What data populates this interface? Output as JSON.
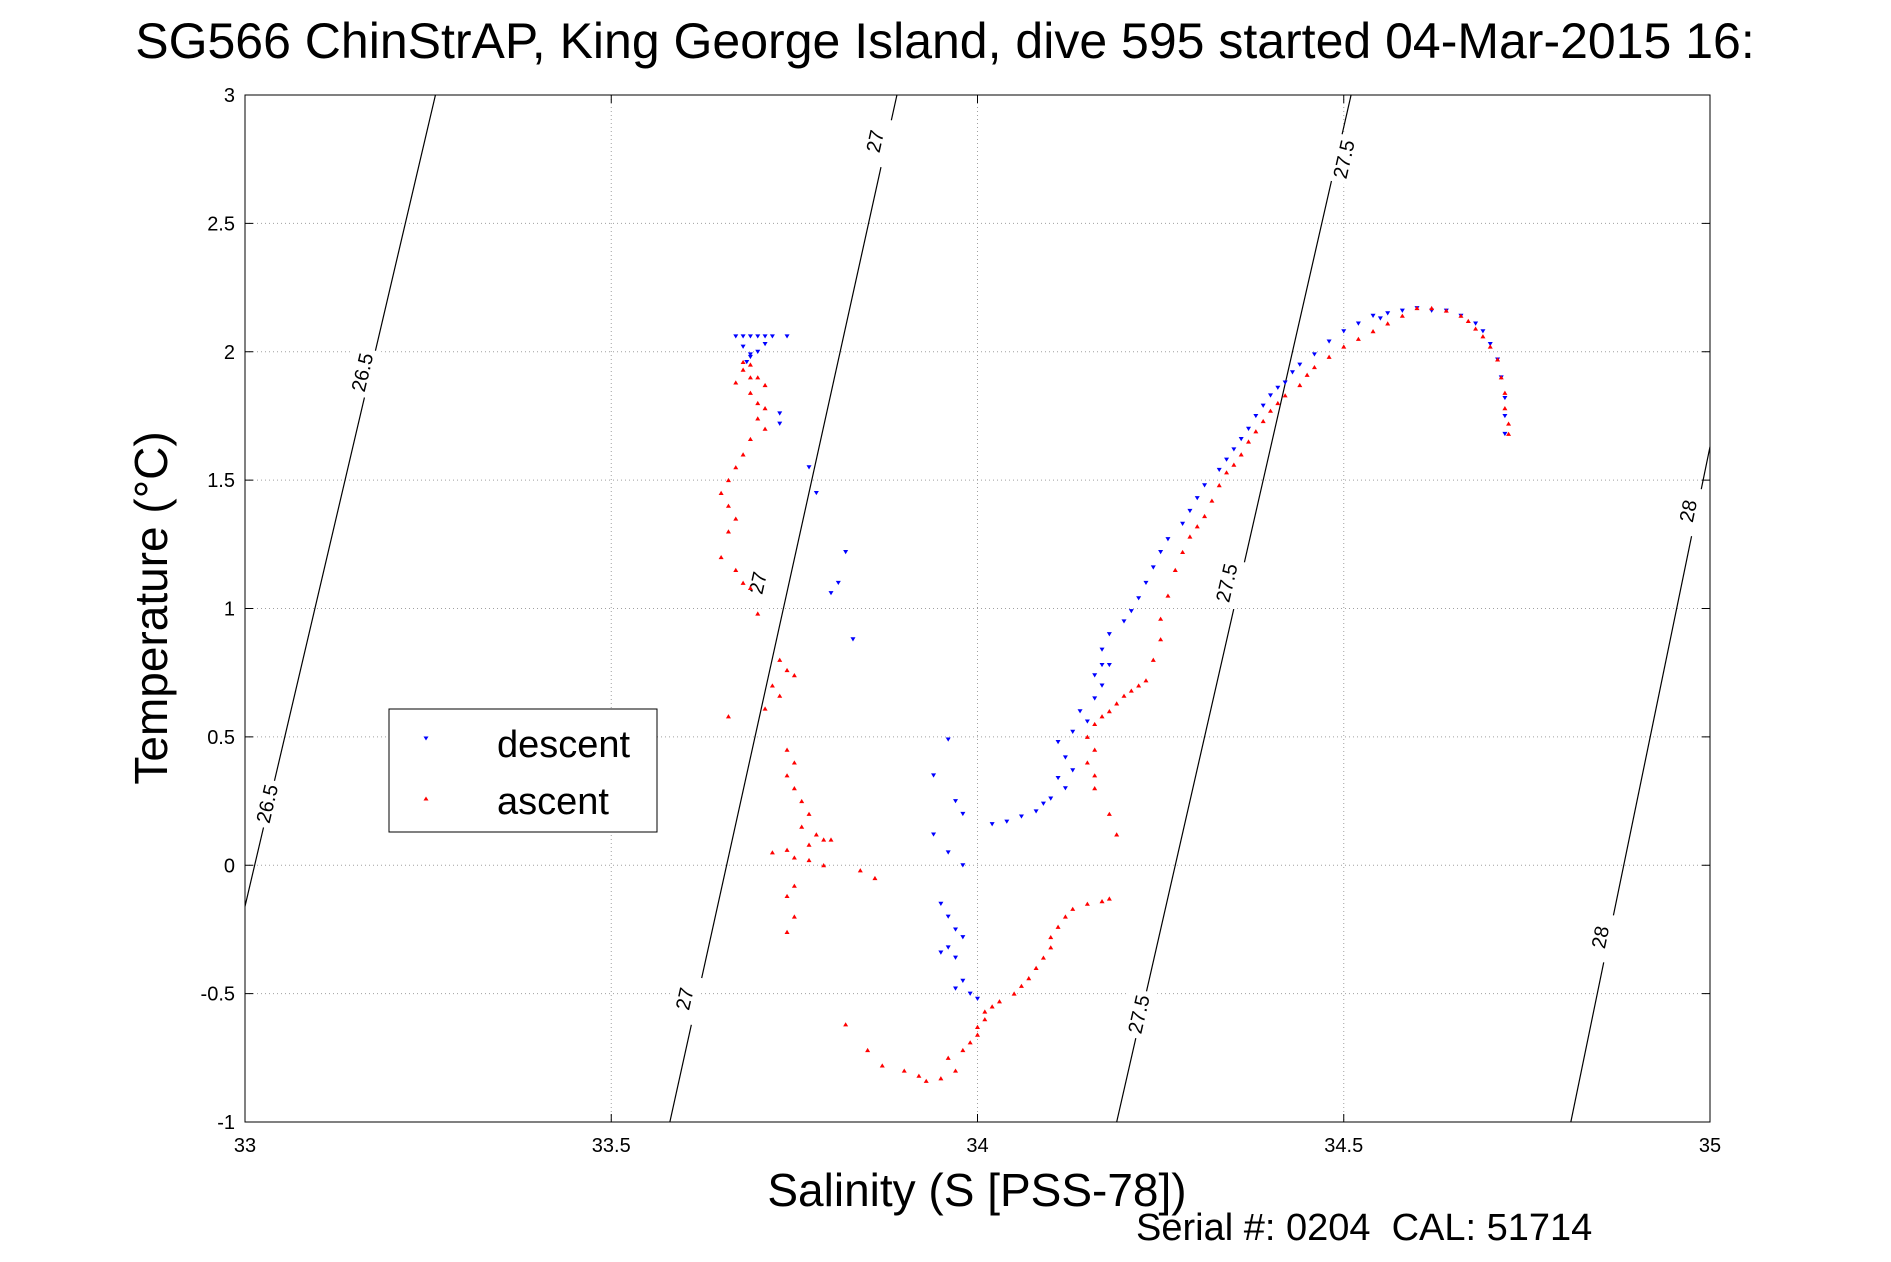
{
  "chart_data": {
    "type": "scatter",
    "title": "SG566 ChinStrAP, King George Island, dive 595 started 04-Mar-2015 16:",
    "xlabel": "Salinity (S [PSS-78])",
    "ylabel": "Temperature (°C)",
    "xlim": [
      33,
      35
    ],
    "ylim": [
      -1,
      3
    ],
    "xticks": [
      "33",
      "33.5",
      "34",
      "34.5",
      "35"
    ],
    "yticks": [
      "-1",
      "-0.5",
      "0",
      "0.5",
      "1",
      "1.5",
      "2",
      "2.5",
      "3"
    ],
    "grid": true,
    "legend": {
      "placement": "center-left",
      "entries": [
        "descent",
        "ascent"
      ]
    },
    "footer": "Serial #: 0204  CAL: 51714",
    "colors": {
      "descent": "#0000ff",
      "ascent": "#ff0000"
    },
    "isopycnals": [
      {
        "label": "26.5",
        "points": [
          [
            33.26,
            3.0
          ],
          [
            33.0,
            -0.16
          ]
        ],
        "labels_at": [
          [
            33.16,
            1.92
          ],
          [
            33.03,
            0.24
          ]
        ]
      },
      {
        "label": "27",
        "points": [
          [
            33.89,
            3.0
          ],
          [
            33.58,
            -1.0
          ]
        ],
        "labels_at": [
          [
            33.86,
            2.82
          ],
          [
            33.7,
            1.1
          ],
          [
            33.6,
            -0.52
          ]
        ]
      },
      {
        "label": "27.5",
        "points": [
          [
            34.51,
            3.0
          ],
          [
            34.19,
            -1.0
          ]
        ],
        "labels_at": [
          [
            34.5,
            2.75
          ],
          [
            34.34,
            1.1
          ],
          [
            34.22,
            -0.58
          ]
        ]
      },
      {
        "label": "28",
        "points": [
          [
            35.0,
            1.63
          ],
          [
            34.81,
            -1.0
          ]
        ],
        "labels_at": [
          [
            34.97,
            1.38
          ],
          [
            34.85,
            -0.28
          ]
        ]
      }
    ],
    "series": [
      {
        "name": "descent",
        "marker": "triangle-down",
        "points": [
          [
            33.67,
            2.06
          ],
          [
            33.68,
            2.06
          ],
          [
            33.69,
            2.06
          ],
          [
            33.7,
            2.06
          ],
          [
            33.71,
            2.06
          ],
          [
            33.72,
            2.06
          ],
          [
            33.74,
            2.06
          ],
          [
            33.68,
            2.02
          ],
          [
            33.69,
            1.99
          ],
          [
            33.685,
            1.96
          ],
          [
            33.69,
            1.98
          ],
          [
            33.7,
            2.0
          ],
          [
            33.71,
            2.03
          ],
          [
            33.73,
            1.76
          ],
          [
            33.73,
            1.72
          ],
          [
            33.77,
            1.55
          ],
          [
            33.78,
            1.45
          ],
          [
            33.82,
            1.22
          ],
          [
            33.81,
            1.1
          ],
          [
            33.8,
            1.06
          ],
          [
            33.83,
            0.88
          ],
          [
            33.96,
            0.49
          ],
          [
            33.94,
            0.35
          ],
          [
            33.97,
            0.25
          ],
          [
            33.98,
            0.2
          ],
          [
            33.94,
            0.12
          ],
          [
            33.96,
            0.05
          ],
          [
            33.98,
            0.0
          ],
          [
            33.95,
            -0.15
          ],
          [
            33.96,
            -0.2
          ],
          [
            33.97,
            -0.25
          ],
          [
            33.98,
            -0.28
          ],
          [
            33.96,
            -0.32
          ],
          [
            33.95,
            -0.34
          ],
          [
            33.97,
            -0.36
          ],
          [
            33.98,
            -0.45
          ],
          [
            33.97,
            -0.48
          ],
          [
            33.99,
            -0.5
          ],
          [
            34.0,
            -0.52
          ],
          [
            34.02,
            0.16
          ],
          [
            34.04,
            0.17
          ],
          [
            34.06,
            0.19
          ],
          [
            34.08,
            0.21
          ],
          [
            34.09,
            0.24
          ],
          [
            34.1,
            0.26
          ],
          [
            34.12,
            0.3
          ],
          [
            34.11,
            0.34
          ],
          [
            34.13,
            0.37
          ],
          [
            34.12,
            0.42
          ],
          [
            34.11,
            0.48
          ],
          [
            34.13,
            0.52
          ],
          [
            34.15,
            0.56
          ],
          [
            34.14,
            0.6
          ],
          [
            34.16,
            0.65
          ],
          [
            34.17,
            0.7
          ],
          [
            34.16,
            0.74
          ],
          [
            34.17,
            0.78
          ],
          [
            34.18,
            0.78
          ],
          [
            34.17,
            0.84
          ],
          [
            34.18,
            0.9
          ],
          [
            34.2,
            0.95
          ],
          [
            34.21,
            0.99
          ],
          [
            34.22,
            1.04
          ],
          [
            34.23,
            1.1
          ],
          [
            34.24,
            1.16
          ],
          [
            34.25,
            1.22
          ],
          [
            34.26,
            1.27
          ],
          [
            34.28,
            1.33
          ],
          [
            34.29,
            1.38
          ],
          [
            34.3,
            1.43
          ],
          [
            34.31,
            1.48
          ],
          [
            34.33,
            1.54
          ],
          [
            34.34,
            1.58
          ],
          [
            34.35,
            1.62
          ],
          [
            34.36,
            1.66
          ],
          [
            34.37,
            1.7
          ],
          [
            34.38,
            1.75
          ],
          [
            34.39,
            1.79
          ],
          [
            34.4,
            1.83
          ],
          [
            34.41,
            1.86
          ],
          [
            34.42,
            1.88
          ],
          [
            34.43,
            1.92
          ],
          [
            34.44,
            1.95
          ],
          [
            34.46,
            1.99
          ],
          [
            34.48,
            2.04
          ],
          [
            34.5,
            2.08
          ],
          [
            34.52,
            2.11
          ],
          [
            34.54,
            2.14
          ],
          [
            34.55,
            2.13
          ],
          [
            34.56,
            2.15
          ],
          [
            34.58,
            2.16
          ],
          [
            34.6,
            2.17
          ],
          [
            34.62,
            2.16
          ],
          [
            34.64,
            2.16
          ],
          [
            34.66,
            2.14
          ],
          [
            34.68,
            2.11
          ],
          [
            34.69,
            2.08
          ],
          [
            34.7,
            2.03
          ],
          [
            34.71,
            1.97
          ],
          [
            34.715,
            1.9
          ],
          [
            34.72,
            1.82
          ],
          [
            34.72,
            1.75
          ],
          [
            34.72,
            1.68
          ]
        ]
      },
      {
        "name": "ascent",
        "marker": "triangle-up",
        "points": [
          [
            33.68,
            1.96
          ],
          [
            33.69,
            1.95
          ],
          [
            33.68,
            1.93
          ],
          [
            33.69,
            1.9
          ],
          [
            33.67,
            1.88
          ],
          [
            33.7,
            1.9
          ],
          [
            33.71,
            1.87
          ],
          [
            33.69,
            1.84
          ],
          [
            33.7,
            1.8
          ],
          [
            33.71,
            1.78
          ],
          [
            33.7,
            1.74
          ],
          [
            33.71,
            1.7
          ],
          [
            33.69,
            1.66
          ],
          [
            33.68,
            1.6
          ],
          [
            33.67,
            1.55
          ],
          [
            33.66,
            1.5
          ],
          [
            33.65,
            1.45
          ],
          [
            33.66,
            1.4
          ],
          [
            33.67,
            1.35
          ],
          [
            33.66,
            1.3
          ],
          [
            33.65,
            1.2
          ],
          [
            33.67,
            1.15
          ],
          [
            33.68,
            1.1
          ],
          [
            33.69,
            1.08
          ],
          [
            33.7,
            0.98
          ],
          [
            33.73,
            0.8
          ],
          [
            33.74,
            0.76
          ],
          [
            33.75,
            0.74
          ],
          [
            33.72,
            0.7
          ],
          [
            33.73,
            0.66
          ],
          [
            33.71,
            0.61
          ],
          [
            33.66,
            0.58
          ],
          [
            33.74,
            0.45
          ],
          [
            33.75,
            0.4
          ],
          [
            33.74,
            0.35
          ],
          [
            33.75,
            0.3
          ],
          [
            33.76,
            0.25
          ],
          [
            33.77,
            0.2
          ],
          [
            33.76,
            0.15
          ],
          [
            33.78,
            0.12
          ],
          [
            33.79,
            0.1
          ],
          [
            33.8,
            0.1
          ],
          [
            33.77,
            0.08
          ],
          [
            33.74,
            0.06
          ],
          [
            33.72,
            0.05
          ],
          [
            33.75,
            0.03
          ],
          [
            33.77,
            0.02
          ],
          [
            33.79,
            0.0
          ],
          [
            33.84,
            -0.02
          ],
          [
            33.86,
            -0.05
          ],
          [
            33.75,
            -0.08
          ],
          [
            33.74,
            -0.12
          ],
          [
            33.75,
            -0.2
          ],
          [
            33.74,
            -0.26
          ],
          [
            33.82,
            -0.62
          ],
          [
            33.85,
            -0.72
          ],
          [
            33.87,
            -0.78
          ],
          [
            33.9,
            -0.8
          ],
          [
            33.92,
            -0.82
          ],
          [
            33.93,
            -0.84
          ],
          [
            33.95,
            -0.83
          ],
          [
            33.97,
            -0.8
          ],
          [
            33.96,
            -0.75
          ],
          [
            33.98,
            -0.72
          ],
          [
            33.99,
            -0.69
          ],
          [
            34.0,
            -0.66
          ],
          [
            34.0,
            -0.63
          ],
          [
            34.01,
            -0.6
          ],
          [
            34.01,
            -0.57
          ],
          [
            34.02,
            -0.55
          ],
          [
            34.03,
            -0.53
          ],
          [
            34.05,
            -0.5
          ],
          [
            34.06,
            -0.47
          ],
          [
            34.07,
            -0.44
          ],
          [
            34.08,
            -0.4
          ],
          [
            34.09,
            -0.36
          ],
          [
            34.1,
            -0.32
          ],
          [
            34.1,
            -0.28
          ],
          [
            34.11,
            -0.24
          ],
          [
            34.12,
            -0.2
          ],
          [
            34.13,
            -0.17
          ],
          [
            34.15,
            -0.15
          ],
          [
            34.17,
            -0.14
          ],
          [
            34.18,
            -0.13
          ],
          [
            34.19,
            0.12
          ],
          [
            34.18,
            0.2
          ],
          [
            34.16,
            0.3
          ],
          [
            34.16,
            0.35
          ],
          [
            34.15,
            0.4
          ],
          [
            34.16,
            0.45
          ],
          [
            34.15,
            0.5
          ],
          [
            34.16,
            0.55
          ],
          [
            34.17,
            0.58
          ],
          [
            34.18,
            0.6
          ],
          [
            34.19,
            0.63
          ],
          [
            34.2,
            0.66
          ],
          [
            34.21,
            0.68
          ],
          [
            34.22,
            0.7
          ],
          [
            34.23,
            0.72
          ],
          [
            34.24,
            0.8
          ],
          [
            34.25,
            0.88
          ],
          [
            34.25,
            0.96
          ],
          [
            34.26,
            1.05
          ],
          [
            34.27,
            1.15
          ],
          [
            34.28,
            1.22
          ],
          [
            34.29,
            1.28
          ],
          [
            34.3,
            1.32
          ],
          [
            34.31,
            1.36
          ],
          [
            34.32,
            1.42
          ],
          [
            34.33,
            1.48
          ],
          [
            34.34,
            1.53
          ],
          [
            34.35,
            1.56
          ],
          [
            34.36,
            1.6
          ],
          [
            34.37,
            1.65
          ],
          [
            34.38,
            1.69
          ],
          [
            34.39,
            1.73
          ],
          [
            34.4,
            1.77
          ],
          [
            34.41,
            1.8
          ],
          [
            34.42,
            1.83
          ],
          [
            34.44,
            1.87
          ],
          [
            34.45,
            1.91
          ],
          [
            34.46,
            1.94
          ],
          [
            34.48,
            1.98
          ],
          [
            34.5,
            2.02
          ],
          [
            34.52,
            2.05
          ],
          [
            34.54,
            2.08
          ],
          [
            34.56,
            2.11
          ],
          [
            34.58,
            2.14
          ],
          [
            34.6,
            2.17
          ],
          [
            34.62,
            2.17
          ],
          [
            34.64,
            2.16
          ],
          [
            34.66,
            2.14
          ],
          [
            34.67,
            2.12
          ],
          [
            34.68,
            2.09
          ],
          [
            34.69,
            2.06
          ],
          [
            34.7,
            2.02
          ],
          [
            34.71,
            1.97
          ],
          [
            34.715,
            1.9
          ],
          [
            34.72,
            1.84
          ],
          [
            34.72,
            1.78
          ],
          [
            34.725,
            1.72
          ],
          [
            34.725,
            1.68
          ]
        ]
      }
    ]
  }
}
